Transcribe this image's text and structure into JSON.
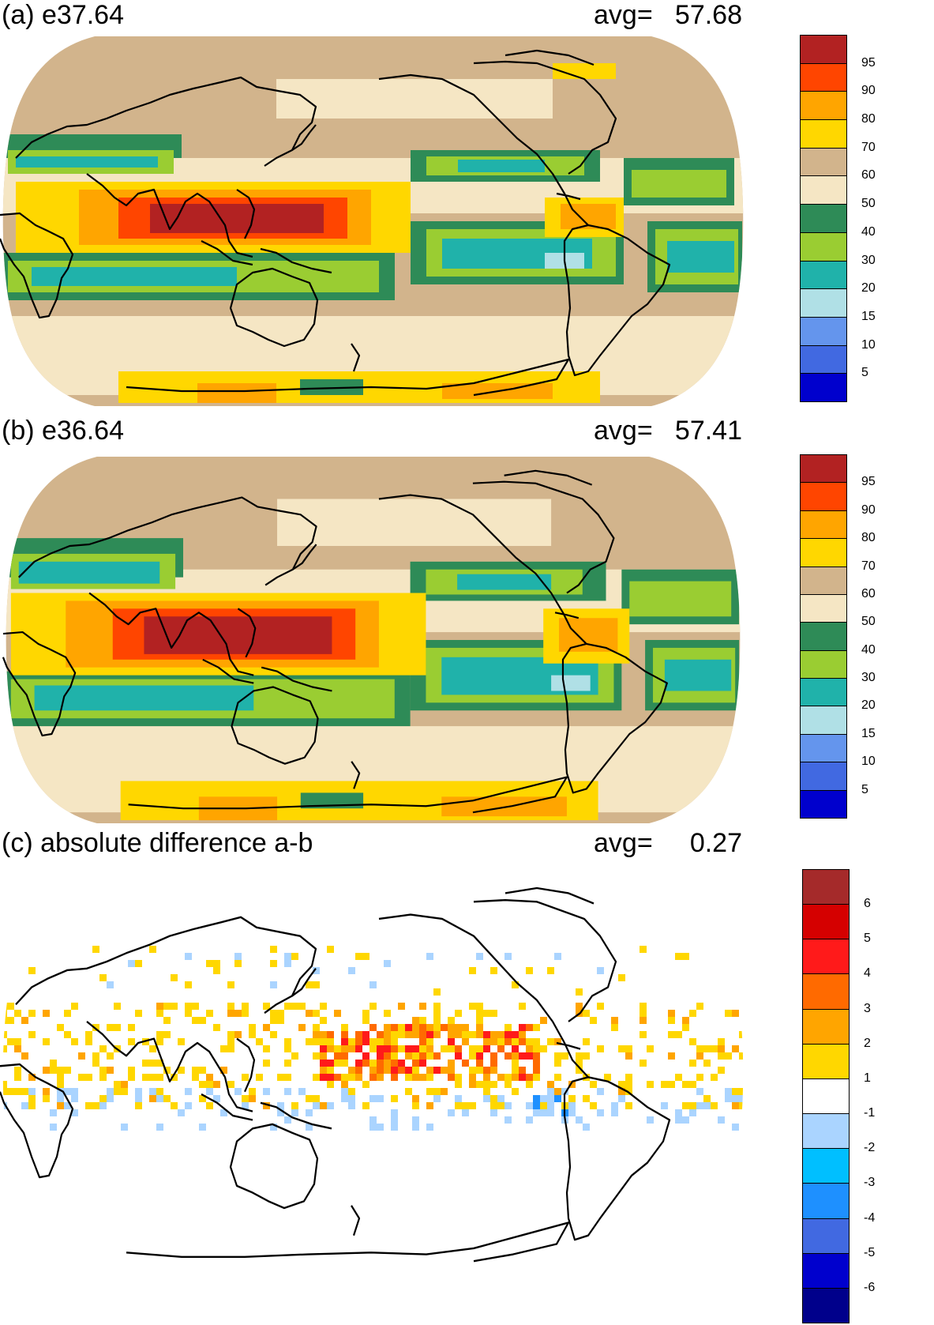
{
  "panels": [
    {
      "id": "a",
      "title": "(a) e37.64",
      "avg_label": "avg=",
      "avg_value": "57.68",
      "colorbar": {
        "labels": [
          "95",
          "90",
          "80",
          "70",
          "60",
          "50",
          "40",
          "30",
          "20",
          "15",
          "10",
          "5"
        ],
        "colors": [
          "#b22222",
          "#ff4500",
          "#ffa500",
          "#ffd700",
          "#d2b48c",
          "#f5e6c4",
          "#2e8b57",
          "#9acd32",
          "#20b2aa",
          "#b0e0e6",
          "#6495ed",
          "#4169e1",
          "#0000cd"
        ]
      }
    },
    {
      "id": "b",
      "title": "(b) e36.64",
      "avg_label": "avg=",
      "avg_value": "57.41",
      "colorbar": {
        "labels": [
          "95",
          "90",
          "80",
          "70",
          "60",
          "50",
          "40",
          "30",
          "20",
          "15",
          "10",
          "5"
        ],
        "colors": [
          "#b22222",
          "#ff4500",
          "#ffa500",
          "#ffd700",
          "#d2b48c",
          "#f5e6c4",
          "#2e8b57",
          "#9acd32",
          "#20b2aa",
          "#b0e0e6",
          "#6495ed",
          "#4169e1",
          "#0000cd"
        ]
      }
    },
    {
      "id": "c",
      "title": "(c) absolute difference a-b",
      "avg_label": "avg=",
      "avg_value": "0.27",
      "colorbar": {
        "labels": [
          "6",
          "5",
          "4",
          "3",
          "2",
          "1",
          "-1",
          "-2",
          "-3",
          "-4",
          "-5",
          "-6"
        ],
        "colors": [
          "#a52a2a",
          "#d50000",
          "#ff1a1a",
          "#ff6a00",
          "#ffa500",
          "#ffd700",
          "#ffffff",
          "#aad4ff",
          "#00bfff",
          "#1e90ff",
          "#4169e1",
          "#0000cd",
          "#00008b"
        ]
      }
    }
  ]
}
